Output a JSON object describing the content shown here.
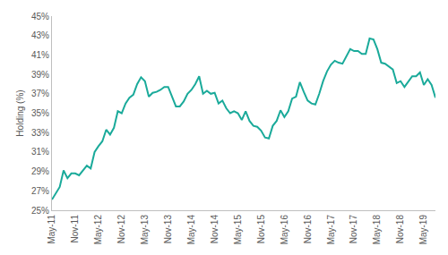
{
  "chart_data": {
    "type": "line",
    "ylabel": "Holding (%)",
    "color": "#1aaa9a",
    "grid": false,
    "categories": [
      "May-11",
      null,
      null,
      null,
      null,
      null,
      "Nov-11",
      null,
      null,
      null,
      null,
      null,
      "May-12",
      null,
      null,
      null,
      null,
      null,
      "Nov-12",
      null,
      null,
      null,
      null,
      null,
      "May-13",
      null,
      null,
      null,
      null,
      null,
      "Nov-13",
      null,
      null,
      null,
      null,
      null,
      "May-14",
      null,
      null,
      null,
      null,
      null,
      "Nov-14",
      null,
      null,
      null,
      null,
      null,
      "May-15",
      null,
      null,
      null,
      null,
      null,
      "Nov-15",
      null,
      null,
      null,
      null,
      null,
      "May-16",
      null,
      null,
      null,
      null,
      null,
      "Nov-16",
      null,
      null,
      null,
      null,
      null,
      "May-17",
      null,
      null,
      null,
      null,
      null,
      "Nov-17",
      null,
      null,
      null,
      null,
      null,
      "May-18",
      null,
      null,
      null,
      null,
      null,
      "Nov-18",
      null,
      null,
      null,
      null,
      null,
      "May-19",
      null,
      null,
      null
    ],
    "values": [
      26.1,
      26.8,
      27.4,
      29.1,
      28.3,
      28.8,
      28.8,
      28.6,
      29.1,
      29.6,
      29.3,
      31.0,
      31.6,
      32.1,
      33.3,
      32.8,
      33.5,
      35.2,
      35.0,
      36.0,
      36.6,
      36.9,
      38.0,
      38.7,
      38.3,
      36.7,
      37.1,
      37.2,
      37.4,
      37.7,
      37.7,
      36.6,
      35.7,
      35.7,
      36.2,
      37.0,
      37.4,
      38.0,
      38.8,
      37.0,
      37.3,
      37.0,
      37.1,
      36.0,
      36.3,
      35.5,
      35.0,
      35.2,
      35.0,
      34.3,
      35.2,
      34.2,
      33.7,
      33.6,
      33.2,
      32.5,
      32.4,
      33.7,
      34.2,
      35.3,
      34.6,
      35.2,
      36.5,
      36.7,
      38.2,
      37.2,
      36.3,
      36.0,
      35.9,
      37.0,
      38.3,
      39.3,
      40.0,
      40.4,
      40.2,
      40.1,
      40.9,
      41.6,
      41.4,
      41.4,
      41.1,
      41.1,
      42.7,
      42.6,
      41.6,
      40.2,
      40.1,
      39.8,
      39.5,
      38.1,
      38.3,
      37.7,
      38.2,
      38.8,
      38.8,
      39.2,
      37.9,
      38.5,
      37.9,
      36.6
    ],
    "ylim": [
      25,
      45
    ],
    "yticks": [
      {
        "value": 25,
        "label": "25%"
      },
      {
        "value": 27,
        "label": "27%"
      },
      {
        "value": 29,
        "label": "29%"
      },
      {
        "value": 31,
        "label": "31%"
      },
      {
        "value": 33,
        "label": "33%"
      },
      {
        "value": 35,
        "label": "35%"
      },
      {
        "value": 37,
        "label": "37%"
      },
      {
        "value": 39,
        "label": "39%"
      },
      {
        "value": 41,
        "label": "41%"
      },
      {
        "value": 43,
        "label": "43%"
      },
      {
        "value": 45,
        "label": "45%"
      }
    ]
  }
}
